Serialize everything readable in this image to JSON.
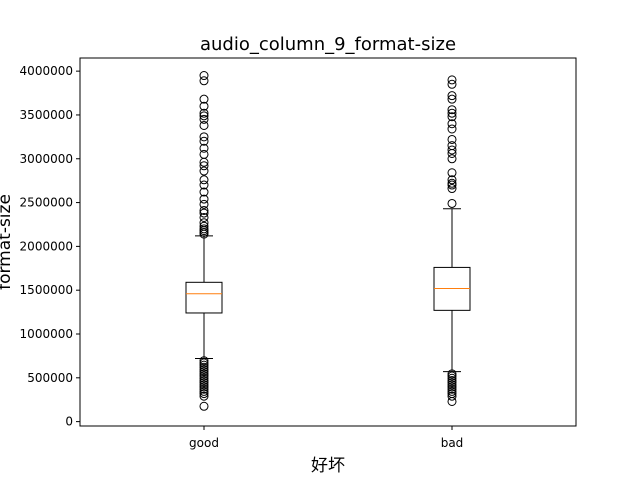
{
  "chart_data": {
    "type": "box",
    "title": "audio_column_9_format-size",
    "xlabel": "好坏",
    "ylabel": "format-size",
    "categories": [
      "good",
      "bad"
    ],
    "ylim": [
      -50000,
      4150000
    ],
    "yticks": [
      0,
      500000,
      1000000,
      1500000,
      2000000,
      2500000,
      3000000,
      3500000,
      4000000
    ],
    "ytick_labels": [
      "0",
      "500000",
      "1000000",
      "1500000",
      "2000000",
      "2500000",
      "3000000",
      "3500000",
      "4000000"
    ],
    "grid": false,
    "boxes": [
      {
        "category": "good",
        "whisker_low": 720000,
        "q1": 1240000,
        "median": 1460000,
        "q3": 1590000,
        "whisker_high": 2120000,
        "outliers": [
          175000,
          290000,
          320000,
          345000,
          370000,
          395000,
          420000,
          445000,
          470000,
          495000,
          520000,
          545000,
          570000,
          595000,
          620000,
          645000,
          670000,
          695000,
          2140000,
          2160000,
          2180000,
          2200000,
          2230000,
          2270000,
          2330000,
          2380000,
          2410000,
          2480000,
          2540000,
          2620000,
          2700000,
          2760000,
          2860000,
          2920000,
          2960000,
          3050000,
          3120000,
          3200000,
          3250000,
          3380000,
          3450000,
          3490000,
          3520000,
          3600000,
          3680000,
          3890000,
          3950000
        ]
      },
      {
        "category": "bad",
        "whisker_low": 570000,
        "q1": 1270000,
        "median": 1520000,
        "q3": 1760000,
        "whisker_high": 2430000,
        "outliers": [
          230000,
          290000,
          320000,
          345000,
          370000,
          395000,
          420000,
          445000,
          470000,
          495000,
          520000,
          545000,
          2490000,
          2660000,
          2700000,
          2720000,
          2760000,
          2840000,
          3000000,
          3060000,
          3100000,
          3150000,
          3220000,
          3340000,
          3400000,
          3480000,
          3520000,
          3560000,
          3680000,
          3720000,
          3850000,
          3900000
        ]
      }
    ],
    "colors": {
      "box": "#000000",
      "median": "#ff7f0e",
      "outlier": "#000000"
    }
  }
}
